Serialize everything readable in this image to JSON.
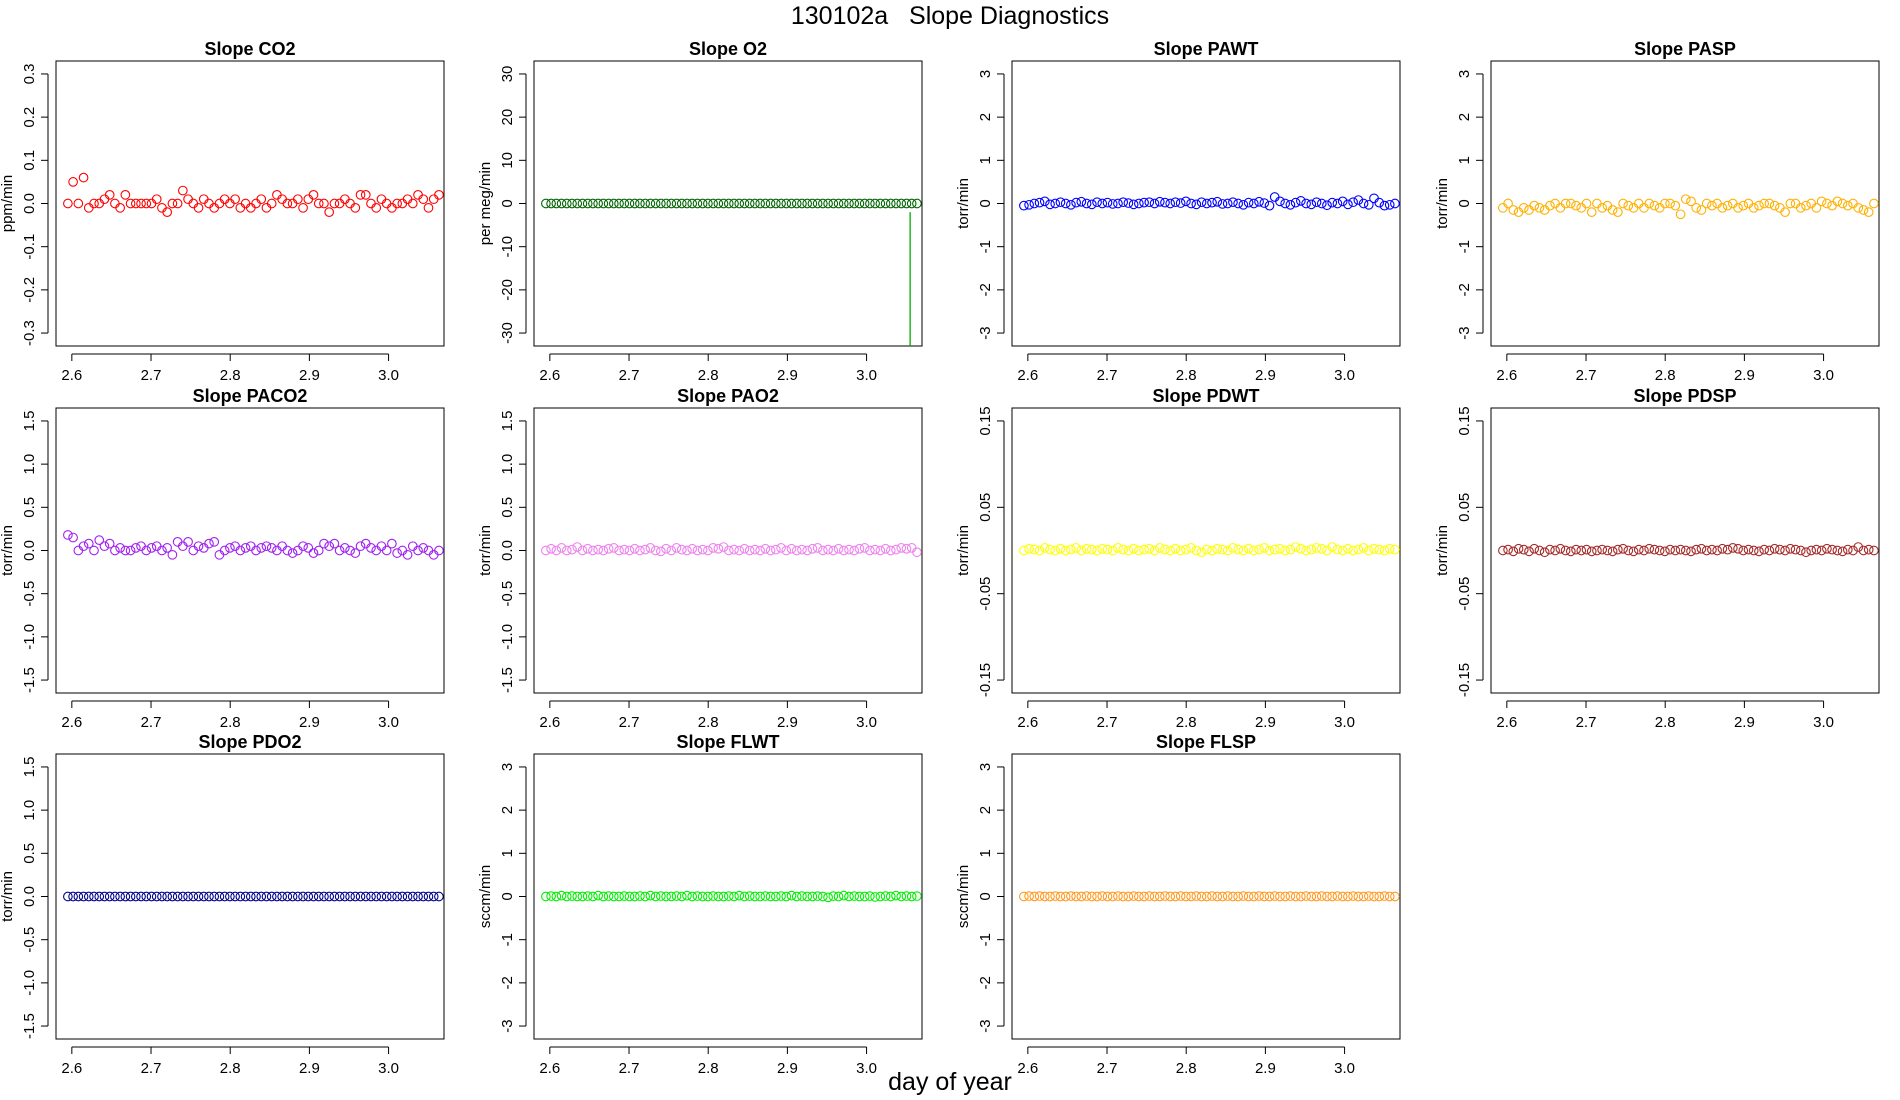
{
  "title": "130102a   Slope Diagnostics",
  "xlabel": "day of year",
  "chart_data": [
    {
      "type": "scatter",
      "title": "Slope CO2",
      "ylabel": "ppm/min",
      "color": "#ff0000",
      "xlim": [
        2.58,
        3.07
      ],
      "ylim": [
        -0.33,
        0.33
      ],
      "xticks": [
        2.6,
        2.7,
        2.8,
        2.9,
        3.0
      ],
      "xtick_labels": [
        "2.6",
        "2.7",
        "2.8",
        "2.9",
        "3.0"
      ],
      "yticks": [
        -0.3,
        -0.2,
        -0.1,
        0.0,
        0.1,
        0.2,
        0.3
      ],
      "ytick_labels": [
        "-0.3",
        "-0.2",
        "-0.1",
        "0.0",
        "0.1",
        "0.2",
        "0.3"
      ],
      "x_start": 2.595,
      "x_step": 0.0066,
      "n": 72,
      "values": [
        0.0,
        0.05,
        0.0,
        0.06,
        -0.01,
        0.0,
        0.0,
        0.01,
        0.02,
        0.0,
        -0.01,
        0.02,
        0.0,
        0.0,
        0.0,
        0.0,
        0.0,
        0.01,
        -0.01,
        -0.02,
        0.0,
        0.0,
        0.03,
        0.01,
        0.0,
        -0.01,
        0.01,
        0.0,
        -0.01,
        0.0,
        0.01,
        0.0,
        0.01,
        -0.01,
        0.0,
        -0.01,
        0.0,
        0.01,
        -0.01,
        0.0,
        0.02,
        0.01,
        0.0,
        0.0,
        0.01,
        -0.01,
        0.01,
        0.02,
        0.0,
        0.0,
        -0.02,
        0.0,
        0.0,
        0.01,
        0.0,
        -0.01,
        0.02,
        0.02,
        0.0,
        -0.01,
        0.01,
        0.0,
        -0.01,
        0.0,
        0.0,
        0.01,
        0.0,
        0.02,
        0.01,
        -0.01,
        0.01,
        0.02
      ]
    },
    {
      "type": "scatter",
      "title": "Slope O2",
      "ylabel": "per meg/min",
      "color": "#006400",
      "xlim": [
        2.58,
        3.07
      ],
      "ylim": [
        -33,
        33
      ],
      "xticks": [
        2.6,
        2.7,
        2.8,
        2.9,
        3.0
      ],
      "xtick_labels": [
        "2.6",
        "2.7",
        "2.8",
        "2.9",
        "3.0"
      ],
      "yticks": [
        -30,
        -20,
        -10,
        0,
        10,
        20,
        30
      ],
      "ytick_labels": [
        "-30",
        "-20",
        "-10",
        "0",
        "10",
        "20",
        "30"
      ],
      "x_start": 2.595,
      "x_step": 0.0066,
      "n": 72,
      "values": [
        0,
        0,
        0,
        0,
        0,
        0,
        0,
        0,
        0,
        0,
        0,
        0,
        0,
        0,
        0,
        0,
        0,
        0,
        0,
        0,
        0,
        0,
        0,
        0,
        0,
        0,
        0,
        0,
        0,
        0,
        0,
        0,
        0,
        0,
        0,
        0,
        0,
        0,
        0,
        0,
        0,
        0,
        0,
        0,
        0,
        0,
        0,
        0,
        0,
        0,
        0,
        0,
        0,
        0,
        0,
        0,
        0,
        0,
        0,
        0,
        0,
        0,
        0,
        0,
        0,
        0,
        0,
        0,
        0,
        0,
        0,
        0
      ],
      "vline": {
        "x": 3.055,
        "from": -2,
        "to": -33,
        "color": "#00aa00"
      }
    },
    {
      "type": "scatter",
      "title": "Slope PAWT",
      "ylabel": "torr/min",
      "color": "#0000ff",
      "xlim": [
        2.58,
        3.07
      ],
      "ylim": [
        -3.3,
        3.3
      ],
      "xticks": [
        2.6,
        2.7,
        2.8,
        2.9,
        3.0
      ],
      "xtick_labels": [
        "2.6",
        "2.7",
        "2.8",
        "2.9",
        "3.0"
      ],
      "yticks": [
        -3,
        -2,
        -1,
        0,
        1,
        2,
        3
      ],
      "ytick_labels": [
        "-3",
        "-2",
        "-1",
        "0",
        "1",
        "2",
        "3"
      ],
      "x_start": 2.595,
      "x_step": 0.0066,
      "n": 72,
      "values": [
        -0.05,
        -0.03,
        0.0,
        0.02,
        0.05,
        -0.02,
        0.0,
        0.03,
        0.0,
        -0.03,
        0.02,
        0.04,
        0.0,
        -0.02,
        0.03,
        0.0,
        0.02,
        -0.01,
        0.0,
        0.03,
        0.01,
        -0.02,
        0.0,
        0.02,
        0.03,
        0.0,
        0.04,
        0.02,
        0.0,
        0.03,
        0.01,
        0.05,
        0.0,
        -0.02,
        0.03,
        0.0,
        0.02,
        0.04,
        -0.01,
        0.0,
        0.03,
        0.0,
        -0.03,
        0.02,
        0.0,
        0.04,
        0.01,
        -0.05,
        0.15,
        0.05,
        0.0,
        -0.03,
        0.02,
        0.06,
        0.0,
        -0.02,
        0.03,
        0.0,
        -0.04,
        0.02,
        0.0,
        0.05,
        -0.02,
        0.03,
        0.08,
        0.0,
        -0.03,
        0.12,
        0.02,
        -0.05,
        -0.03,
        0.0
      ]
    },
    {
      "type": "scatter",
      "title": "Slope PASP",
      "ylabel": "torr/min",
      "color": "#ffb000",
      "xlim": [
        2.58,
        3.07
      ],
      "ylim": [
        -3.3,
        3.3
      ],
      "xticks": [
        2.6,
        2.7,
        2.8,
        2.9,
        3.0
      ],
      "xtick_labels": [
        "2.6",
        "2.7",
        "2.8",
        "2.9",
        "3.0"
      ],
      "yticks": [
        -3,
        -2,
        -1,
        0,
        1,
        2,
        3
      ],
      "ytick_labels": [
        "-3",
        "-2",
        "-1",
        "0",
        "1",
        "2",
        "3"
      ],
      "x_start": 2.595,
      "x_step": 0.0066,
      "n": 72,
      "values": [
        -0.1,
        0.0,
        -0.15,
        -0.2,
        -0.1,
        -0.15,
        -0.05,
        -0.1,
        -0.15,
        -0.05,
        0.0,
        -0.1,
        0.0,
        0.0,
        -0.05,
        -0.1,
        0.0,
        -0.2,
        0.0,
        -0.1,
        -0.05,
        -0.15,
        -0.2,
        0.0,
        -0.05,
        -0.1,
        0.0,
        -0.1,
        0.0,
        -0.05,
        -0.1,
        0.0,
        0.0,
        -0.05,
        -0.25,
        0.1,
        0.05,
        -0.1,
        -0.15,
        0.0,
        -0.05,
        0.0,
        -0.1,
        -0.05,
        0.0,
        -0.1,
        -0.05,
        0.0,
        -0.1,
        -0.05,
        0.0,
        0.0,
        -0.05,
        -0.1,
        -0.2,
        0.0,
        0.0,
        -0.1,
        -0.05,
        0.0,
        -0.1,
        0.05,
        0.0,
        -0.05,
        0.05,
        0.0,
        -0.05,
        0.0,
        -0.1,
        -0.15,
        -0.2,
        0.0
      ]
    },
    {
      "type": "scatter",
      "title": "Slope PACO2",
      "ylabel": "torr/min",
      "color": "#a020f0",
      "xlim": [
        2.58,
        3.07
      ],
      "ylim": [
        -1.65,
        1.65
      ],
      "xticks": [
        2.6,
        2.7,
        2.8,
        2.9,
        3.0
      ],
      "xtick_labels": [
        "2.6",
        "2.7",
        "2.8",
        "2.9",
        "3.0"
      ],
      "yticks": [
        -1.5,
        -1.0,
        -0.5,
        0.0,
        0.5,
        1.0,
        1.5
      ],
      "ytick_labels": [
        "-1.5",
        "-1.0",
        "-0.5",
        "0.0",
        "0.5",
        "1.0",
        "1.5"
      ],
      "x_start": 2.595,
      "x_step": 0.0066,
      "n": 72,
      "values": [
        0.18,
        0.15,
        0.0,
        0.05,
        0.08,
        0.0,
        0.12,
        0.05,
        0.08,
        0.0,
        0.03,
        0.0,
        0.0,
        0.03,
        0.05,
        0.0,
        0.03,
        0.05,
        0.0,
        0.03,
        -0.05,
        0.1,
        0.05,
        0.1,
        0.0,
        0.05,
        0.03,
        0.08,
        0.1,
        -0.05,
        0.0,
        0.03,
        0.05,
        0.0,
        0.03,
        0.05,
        0.0,
        0.03,
        0.05,
        0.03,
        0.0,
        0.05,
        0.0,
        -0.03,
        0.0,
        0.05,
        0.03,
        -0.03,
        0.0,
        0.08,
        0.05,
        0.08,
        0.0,
        0.03,
        0.0,
        -0.03,
        0.05,
        0.08,
        0.03,
        0.0,
        0.05,
        0.0,
        0.08,
        -0.03,
        0.0,
        -0.05,
        0.05,
        0.0,
        0.03,
        0.0,
        -0.05,
        0.0
      ]
    },
    {
      "type": "scatter",
      "title": "Slope PAO2",
      "ylabel": "torr/min",
      "color": "#ee82ee",
      "xlim": [
        2.58,
        3.07
      ],
      "ylim": [
        -1.65,
        1.65
      ],
      "xticks": [
        2.6,
        2.7,
        2.8,
        2.9,
        3.0
      ],
      "xtick_labels": [
        "2.6",
        "2.7",
        "2.8",
        "2.9",
        "3.0"
      ],
      "yticks": [
        -1.5,
        -1.0,
        -0.5,
        0.0,
        0.5,
        1.0,
        1.5
      ],
      "ytick_labels": [
        "-1.5",
        "-1.0",
        "-0.5",
        "0.0",
        "0.5",
        "1.0",
        "1.5"
      ],
      "x_start": 2.595,
      "x_step": 0.0066,
      "n": 72,
      "values": [
        0.0,
        0.02,
        0.0,
        0.03,
        0.0,
        0.01,
        0.04,
        0.0,
        0.02,
        0.0,
        0.01,
        0.0,
        0.02,
        0.03,
        0.0,
        0.01,
        0.0,
        0.02,
        0.0,
        0.01,
        0.03,
        0.0,
        -0.01,
        0.02,
        0.0,
        0.03,
        0.01,
        0.0,
        0.02,
        0.0,
        0.01,
        0.0,
        0.03,
        0.02,
        0.04,
        0.0,
        0.01,
        0.0,
        0.02,
        0.0,
        0.01,
        0.0,
        0.02,
        0.0,
        0.01,
        0.03,
        0.0,
        0.02,
        0.0,
        0.01,
        0.0,
        0.02,
        0.03,
        0.0,
        0.01,
        0.0,
        0.02,
        0.0,
        0.01,
        0.0,
        0.02,
        0.03,
        0.0,
        0.01,
        0.0,
        0.02,
        0.0,
        0.01,
        0.03,
        0.02,
        0.03,
        -0.02
      ]
    },
    {
      "type": "scatter",
      "title": "Slope PDWT",
      "ylabel": "torr/min",
      "color": "#ffff00",
      "xlim": [
        2.58,
        3.07
      ],
      "ylim": [
        -0.165,
        0.165
      ],
      "xticks": [
        2.6,
        2.7,
        2.8,
        2.9,
        3.0
      ],
      "xtick_labels": [
        "2.6",
        "2.7",
        "2.8",
        "2.9",
        "3.0"
      ],
      "yticks": [
        -0.15,
        -0.05,
        0.05,
        0.15
      ],
      "ytick_labels": [
        "-0.15",
        "-0.05",
        "0.05",
        "0.15"
      ],
      "x_start": 2.595,
      "x_step": 0.0066,
      "n": 72,
      "values": [
        0.0,
        0.002,
        0.001,
        0.0,
        0.003,
        0.001,
        0.0,
        0.002,
        0.0,
        0.001,
        0.003,
        0.0,
        0.002,
        0.001,
        0.0,
        0.002,
        0.001,
        0.0,
        0.003,
        0.001,
        0.0,
        0.002,
        0.0,
        0.001,
        0.002,
        0.0,
        0.003,
        0.001,
        0.0,
        0.002,
        0.0,
        0.001,
        0.003,
        0.0,
        -0.002,
        0.001,
        0.0,
        0.002,
        0.001,
        0.0,
        0.003,
        0.001,
        0.0,
        0.002,
        0.0,
        0.001,
        0.003,
        0.0,
        0.001,
        0.002,
        0.0,
        0.001,
        0.004,
        0.002,
        0.0,
        0.001,
        0.003,
        0.002,
        0.0,
        0.004,
        0.001,
        0.0,
        0.002,
        0.0,
        0.001,
        0.003,
        0.0,
        0.002,
        0.001,
        0.0,
        0.002,
        0.001
      ]
    },
    {
      "type": "scatter",
      "title": "Slope PDSP",
      "ylabel": "torr/min",
      "color": "#a52a2a",
      "xlim": [
        2.58,
        3.07
      ],
      "ylim": [
        -0.165,
        0.165
      ],
      "xticks": [
        2.6,
        2.7,
        2.8,
        2.9,
        3.0
      ],
      "xtick_labels": [
        "2.6",
        "2.7",
        "2.8",
        "2.9",
        "3.0"
      ],
      "yticks": [
        -0.15,
        -0.05,
        0.05,
        0.15
      ],
      "ytick_labels": [
        "-0.15",
        "-0.05",
        "0.05",
        "0.15"
      ],
      "x_start": 2.595,
      "x_step": 0.0066,
      "n": 72,
      "values": [
        0.0,
        0.001,
        -0.001,
        0.002,
        0.001,
        -0.001,
        0.002,
        0.0,
        -0.002,
        0.001,
        0.0,
        0.002,
        0.0,
        -0.001,
        0.001,
        0.0,
        0.001,
        -0.001,
        0.0,
        0.001,
        0.0,
        -0.001,
        0.001,
        0.002,
        0.0,
        -0.001,
        0.001,
        0.0,
        0.002,
        0.001,
        0.0,
        -0.001,
        0.001,
        0.0,
        0.001,
        0.0,
        -0.001,
        0.001,
        0.002,
        0.0,
        0.001,
        0.0,
        0.002,
        0.001,
        0.003,
        0.002,
        0.0,
        0.001,
        0.0,
        -0.001,
        0.001,
        0.0,
        0.002,
        0.001,
        0.0,
        0.002,
        0.001,
        0.0,
        -0.002,
        0.0,
        0.001,
        0.0,
        0.002,
        0.001,
        0.0,
        -0.001,
        0.001,
        0.0,
        0.004,
        0.0,
        0.001,
        0.0
      ]
    },
    {
      "type": "scatter",
      "title": "Slope PDO2",
      "ylabel": "torr/min",
      "color": "#00008b",
      "xlim": [
        2.58,
        3.07
      ],
      "ylim": [
        -1.65,
        1.65
      ],
      "xticks": [
        2.6,
        2.7,
        2.8,
        2.9,
        3.0
      ],
      "xtick_labels": [
        "2.6",
        "2.7",
        "2.8",
        "2.9",
        "3.0"
      ],
      "yticks": [
        -1.5,
        -1.0,
        -0.5,
        0.0,
        0.5,
        1.0,
        1.5
      ],
      "ytick_labels": [
        "-1.5",
        "-1.0",
        "-0.5",
        "0.0",
        "0.5",
        "1.0",
        "1.5"
      ],
      "x_start": 2.595,
      "x_step": 0.0066,
      "n": 72,
      "values": [
        0,
        0,
        0,
        0,
        0,
        0,
        0,
        0,
        0,
        0,
        0,
        0,
        0,
        0,
        0,
        0,
        0,
        0,
        0,
        0,
        0,
        0,
        0,
        0,
        0,
        0,
        0,
        0,
        0,
        0,
        0,
        0,
        0,
        0,
        0,
        0,
        0,
        0,
        0,
        0,
        0,
        0,
        0,
        0,
        0,
        0,
        0,
        0,
        0,
        0,
        0,
        0,
        0,
        0,
        0,
        0,
        0,
        0,
        0,
        0,
        0,
        0,
        0,
        0,
        0,
        0,
        0,
        0,
        0,
        0,
        0,
        0
      ]
    },
    {
      "type": "scatter",
      "title": "Slope FLWT",
      "ylabel": "sccm/min",
      "color": "#00ee00",
      "xlim": [
        2.58,
        3.07
      ],
      "ylim": [
        -3.3,
        3.3
      ],
      "xticks": [
        2.6,
        2.7,
        2.8,
        2.9,
        3.0
      ],
      "xtick_labels": [
        "2.6",
        "2.7",
        "2.8",
        "2.9",
        "3.0"
      ],
      "yticks": [
        -3,
        -2,
        -1,
        0,
        1,
        2,
        3
      ],
      "ytick_labels": [
        "-3",
        "-2",
        "-1",
        "0",
        "1",
        "2",
        "3"
      ],
      "x_start": 2.595,
      "x_step": 0.0066,
      "n": 72,
      "values": [
        0.0,
        0.01,
        0.0,
        0.02,
        0.0,
        0.01,
        0.0,
        0.0,
        0.01,
        0.0,
        0.02,
        0.0,
        0.01,
        0.0,
        0.0,
        0.01,
        0.0,
        0.0,
        0.01,
        0.0,
        0.02,
        0.0,
        0.01,
        0.0,
        0.0,
        0.01,
        0.0,
        0.02,
        0.0,
        0.01,
        0.0,
        0.0,
        0.01,
        0.0,
        0.0,
        0.01,
        0.0,
        0.02,
        0.0,
        0.01,
        0.0,
        0.0,
        0.01,
        0.0,
        0.0,
        0.01,
        0.0,
        0.02,
        0.0,
        0.01,
        0.0,
        0.0,
        0.01,
        0.0,
        -0.02,
        0.01,
        0.0,
        0.02,
        0.0,
        0.01,
        0.0,
        0.0,
        0.01,
        -0.01,
        0.0,
        0.01,
        0.0,
        0.02,
        0.0,
        0.01,
        0.0,
        0.01
      ]
    },
    {
      "type": "scatter",
      "title": "Slope FLSP",
      "ylabel": "sccm/min",
      "color": "#ff9a20",
      "xlim": [
        2.58,
        3.07
      ],
      "ylim": [
        -3.3,
        3.3
      ],
      "xticks": [
        2.6,
        2.7,
        2.8,
        2.9,
        3.0
      ],
      "xtick_labels": [
        "2.6",
        "2.7",
        "2.8",
        "2.9",
        "3.0"
      ],
      "yticks": [
        -3,
        -2,
        -1,
        0,
        1,
        2,
        3
      ],
      "ytick_labels": [
        "-3",
        "-2",
        "-1",
        "0",
        "1",
        "2",
        "3"
      ],
      "x_start": 2.595,
      "x_step": 0.0066,
      "n": 72,
      "values": [
        0.0,
        0.01,
        0.0,
        0.01,
        0.0,
        0.0,
        0.01,
        0.0,
        0.0,
        0.01,
        0.0,
        0.0,
        0.01,
        0.0,
        0.0,
        0.01,
        0.0,
        0.0,
        0.01,
        0.0,
        0.0,
        0.01,
        0.0,
        0.0,
        0.01,
        0.0,
        0.0,
        0.01,
        0.0,
        0.0,
        0.01,
        0.0,
        0.0,
        0.01,
        0.0,
        0.0,
        0.01,
        0.0,
        0.0,
        0.01,
        0.0,
        0.0,
        0.01,
        0.0,
        0.0,
        0.01,
        0.0,
        0.0,
        0.01,
        0.0,
        0.0,
        0.01,
        0.0,
        0.0,
        0.01,
        0.0,
        0.0,
        0.01,
        0.0,
        0.0,
        0.01,
        0.0,
        0.0,
        0.01,
        0.0,
        0.0,
        0.01,
        0.0,
        0.0,
        0.01,
        0.0,
        0.0
      ]
    }
  ]
}
